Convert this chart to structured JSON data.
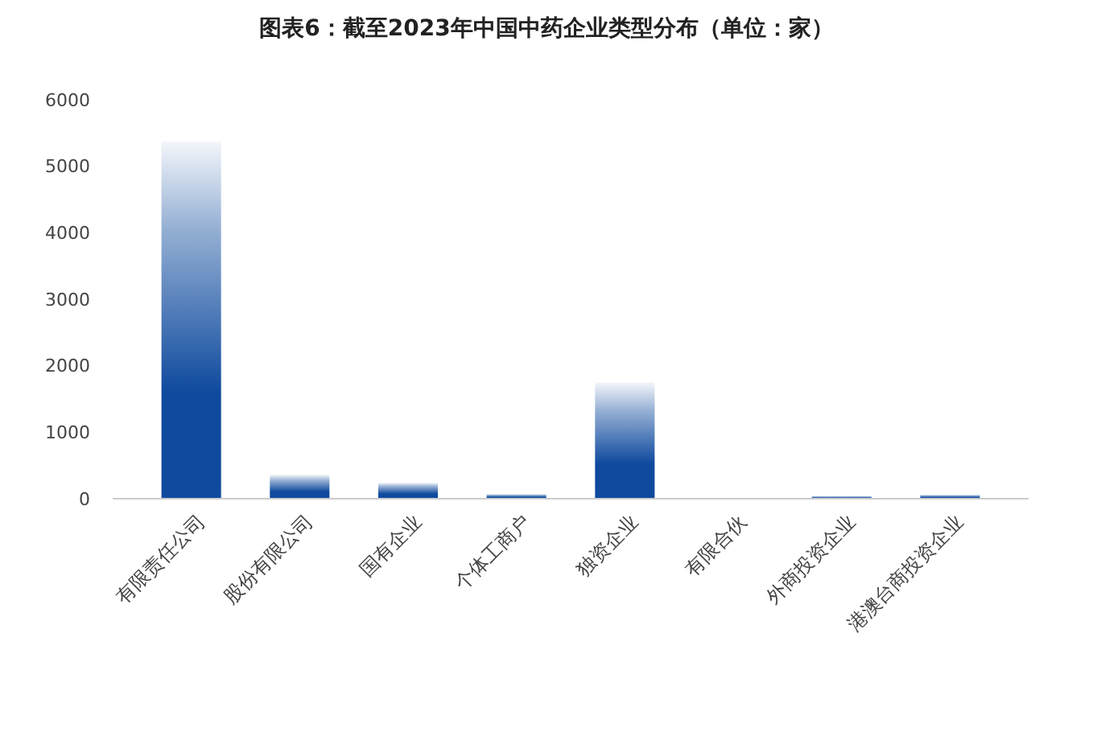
{
  "chart_data": {
    "type": "bar",
    "title": "图表6：截至2023年中国中药企业类型分布（单位：家）",
    "categories": [
      "有限责任公司",
      "股份有限公司",
      "国有企业",
      "个体工商户",
      "独资企业",
      "有限合伙",
      "外商投资企业",
      "港澳台商投资企业"
    ],
    "values": [
      5370,
      360,
      240,
      70,
      1750,
      0,
      40,
      60
    ],
    "color": "#0f4a9e",
    "ylim": [
      0,
      6000
    ],
    "yticks": [
      0,
      1000,
      2000,
      3000,
      4000,
      5000,
      6000
    ],
    "grid": false
  }
}
